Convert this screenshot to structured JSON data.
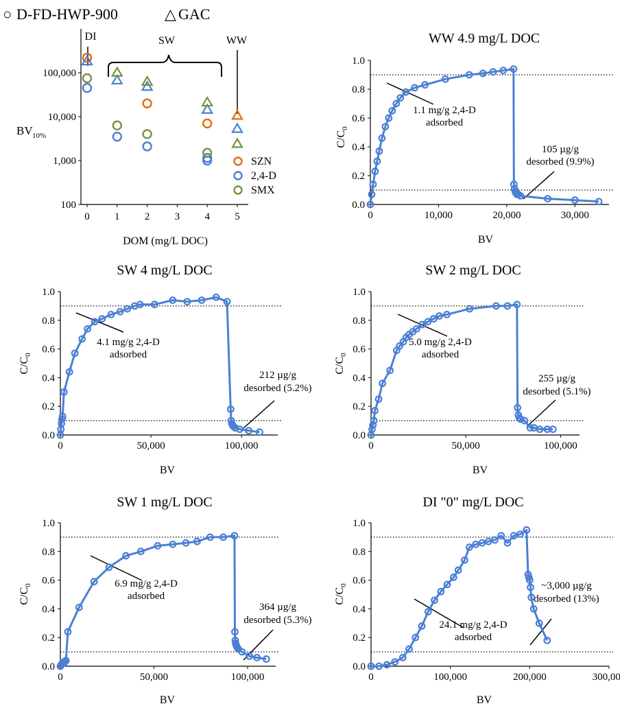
{
  "legend": {
    "circle_label": "D-FD-HWP-900",
    "triangle_label": "GAC",
    "symbols": {
      "circle": "○",
      "triangle": "△"
    }
  },
  "colors": {
    "SZN": "#e46c0a",
    "2,4-D": "#4a7fd4",
    "SMX": "#77933c",
    "curve": "#4a7fd4"
  },
  "chart_data": [
    {
      "type": "scatter",
      "id": "bv",
      "title": "",
      "xlabel": "DOM (mg/L  DOC)",
      "ylabel": "BV",
      "ylabel_sub": "10%",
      "yscale": "log",
      "xlim": [
        0,
        5
      ],
      "ylim": [
        100,
        1000000
      ],
      "xticks": [
        "0",
        "1",
        "2",
        "3",
        "4",
        "5"
      ],
      "yticks": [
        "100",
        "1,000",
        "10,000",
        "100,000"
      ],
      "yticks_values": [
        100,
        1000,
        10000,
        100000
      ],
      "grid": false,
      "region_labels": [
        {
          "text": "DI",
          "x": 0.2
        },
        {
          "text": "SW",
          "x": 2.7
        },
        {
          "text": "WW",
          "x": 5.0
        }
      ],
      "legend_entries": [
        "SZN",
        "2,4-D",
        "SMX"
      ],
      "series": [
        {
          "name": "SZN",
          "marker": "circle",
          "x": [
            0,
            2,
            4
          ],
          "y": [
            220000,
            20000,
            7000
          ]
        },
        {
          "name": "2,4-D",
          "marker": "circle",
          "x": [
            0,
            1,
            2,
            4,
            4
          ],
          "y": [
            45000,
            3500,
            2100,
            1000,
            1150
          ]
        },
        {
          "name": "SMX",
          "marker": "circle",
          "x": [
            0,
            1,
            2,
            4
          ],
          "y": [
            75000,
            6300,
            4000,
            1500
          ]
        },
        {
          "name": "SZN",
          "marker": "triangle",
          "x": [
            5
          ],
          "y": [
            11000
          ]
        },
        {
          "name": "2,4-D",
          "marker": "triangle",
          "x": [
            0,
            1,
            2,
            4,
            5
          ],
          "y": [
            190000,
            70000,
            50000,
            15000,
            5500
          ]
        },
        {
          "name": "SMX",
          "marker": "triangle",
          "x": [
            1,
            2,
            4,
            5
          ],
          "y": [
            105000,
            65000,
            22000,
            2500
          ]
        }
      ]
    },
    {
      "type": "line",
      "id": "ww",
      "title": "WW 4.9 mg/L  DOC",
      "xlabel": "BV",
      "ylabel": "C/C",
      "ylabel_sub": "0",
      "xlim": [
        0,
        35000
      ],
      "ylim": [
        0,
        1.0
      ],
      "xticks": [
        "0",
        "10,000",
        "20,000",
        "30,000"
      ],
      "xticks_values": [
        0,
        10000,
        20000,
        30000
      ],
      "yticks": [
        "0.0",
        "0.2",
        "0.4",
        "0.6",
        "0.8",
        "1.0"
      ],
      "reference_lines": [
        0.1,
        0.9
      ],
      "annotations": [
        {
          "lines": [
            "1.1 mg/g 2,4-D",
            "adsorbed"
          ]
        },
        {
          "lines": [
            "105 µg/g",
            "desorbed (9.9%)"
          ]
        }
      ],
      "series": [
        {
          "x": [
            0,
            200,
            400,
            700,
            1000,
            1300,
            1700,
            2200,
            2700,
            3200,
            3800,
            4400,
            5200,
            6500,
            8000,
            11000,
            14500,
            16500,
            18000,
            19500,
            21000,
            21050,
            21150,
            21250,
            21350,
            21500,
            21700,
            22000,
            26000,
            30000,
            33500
          ],
          "y": [
            0.0,
            0.07,
            0.14,
            0.23,
            0.3,
            0.37,
            0.46,
            0.54,
            0.6,
            0.65,
            0.7,
            0.74,
            0.78,
            0.81,
            0.83,
            0.87,
            0.9,
            0.91,
            0.92,
            0.93,
            0.94,
            0.14,
            0.11,
            0.09,
            0.08,
            0.07,
            0.07,
            0.06,
            0.04,
            0.03,
            0.02
          ]
        }
      ]
    },
    {
      "type": "line",
      "id": "sw4",
      "title": "SW 4 mg/L  DOC",
      "xlabel": "BV",
      "ylabel": "C/C",
      "ylabel_sub": "0",
      "xlim": [
        0,
        120000
      ],
      "ylim": [
        0,
        1.0
      ],
      "xticks": [
        "0",
        "50,000",
        "100,000"
      ],
      "xticks_values": [
        0,
        50000,
        100000
      ],
      "yticks": [
        "0.0",
        "0.2",
        "0.4",
        "0.6",
        "0.8",
        "1.0"
      ],
      "reference_lines": [
        0.1,
        0.9
      ],
      "annotations": [
        {
          "lines": [
            "4.1 mg/g 2,4-D",
            "adsorbed"
          ]
        },
        {
          "lines": [
            "212 µg/g",
            "desorbed (5.2%)"
          ]
        }
      ],
      "series": [
        {
          "x": [
            0,
            300,
            600,
            900,
            1200,
            2000,
            5000,
            8000,
            12000,
            15000,
            19000,
            23000,
            28000,
            33000,
            37000,
            41000,
            44000,
            52000,
            62000,
            70000,
            78000,
            86000,
            92000,
            94000,
            94300,
            94600,
            95000,
            95500,
            96500,
            99000,
            104000,
            110000
          ],
          "y": [
            0.0,
            0.04,
            0.08,
            0.11,
            0.13,
            0.3,
            0.44,
            0.57,
            0.67,
            0.74,
            0.79,
            0.81,
            0.84,
            0.86,
            0.88,
            0.9,
            0.91,
            0.91,
            0.94,
            0.93,
            0.94,
            0.96,
            0.93,
            0.18,
            0.1,
            0.08,
            0.07,
            0.06,
            0.05,
            0.04,
            0.03,
            0.02
          ]
        }
      ]
    },
    {
      "type": "line",
      "id": "sw2",
      "title": "SW 2 mg/L  DOC",
      "xlabel": "BV",
      "ylabel": "C/C",
      "ylabel_sub": "0",
      "xlim": [
        0,
        110000
      ],
      "ylim": [
        0,
        1.0
      ],
      "xticks": [
        "0",
        "50,000",
        "100,000"
      ],
      "xticks_values": [
        0,
        50000,
        100000
      ],
      "yticks": [
        "0.0",
        "0.2",
        "0.4",
        "0.6",
        "0.8",
        "1.0"
      ],
      "reference_lines": [
        0.1,
        0.9
      ],
      "annotations": [
        {
          "lines": [
            "5.0 mg/g 2,4-D",
            "adsorbed"
          ]
        },
        {
          "lines": [
            "255 µg/g",
            "desorbed (5.1%)"
          ]
        }
      ],
      "series": [
        {
          "x": [
            0,
            500,
            1000,
            1500,
            2000,
            4000,
            6000,
            10000,
            13500,
            15000,
            17000,
            18500,
            20000,
            22000,
            24000,
            27000,
            30000,
            33000,
            36000,
            40000,
            52000,
            66000,
            72000,
            77000,
            77300,
            77700,
            78200,
            79000,
            81000,
            84000,
            86000,
            89000,
            93000,
            96000
          ],
          "y": [
            0.0,
            0.04,
            0.07,
            0.1,
            0.17,
            0.25,
            0.36,
            0.45,
            0.59,
            0.62,
            0.65,
            0.68,
            0.7,
            0.72,
            0.74,
            0.77,
            0.79,
            0.81,
            0.83,
            0.84,
            0.88,
            0.9,
            0.9,
            0.91,
            0.19,
            0.14,
            0.12,
            0.11,
            0.1,
            0.05,
            0.05,
            0.04,
            0.04,
            0.04
          ]
        }
      ]
    },
    {
      "type": "line",
      "id": "sw1",
      "title": "SW 1 mg/L  DOC",
      "xlabel": "BV",
      "ylabel": "C/C",
      "ylabel_sub": "0",
      "xlim": [
        0,
        115000
      ],
      "ylim": [
        0,
        1.0
      ],
      "xticks": [
        "0",
        "50,000",
        "100,000"
      ],
      "xticks_values": [
        0,
        50000,
        100000
      ],
      "yticks": [
        "0.0",
        "0.2",
        "0.4",
        "0.6",
        "0.8",
        "1.0"
      ],
      "reference_lines": [
        0.1,
        0.9
      ],
      "annotations": [
        {
          "lines": [
            "6.9 mg/g 2,4-D",
            "adsorbed"
          ]
        },
        {
          "lines": [
            "364 µg/g",
            "desorbed (5.3%)"
          ]
        }
      ],
      "series": [
        {
          "x": [
            0,
            500,
            1000,
            1500,
            2000,
            2500,
            3000,
            4000,
            10000,
            18000,
            26000,
            35000,
            43000,
            52000,
            60000,
            67000,
            73000,
            80000,
            87000,
            93000,
            93200,
            93400,
            93600,
            93800,
            94100,
            94500,
            95000,
            97000,
            101000,
            105000,
            110000
          ],
          "y": [
            0.0,
            0.01,
            0.02,
            0.02,
            0.03,
            0.03,
            0.04,
            0.24,
            0.41,
            0.59,
            0.69,
            0.77,
            0.8,
            0.84,
            0.85,
            0.86,
            0.87,
            0.9,
            0.9,
            0.91,
            0.24,
            0.18,
            0.16,
            0.15,
            0.14,
            0.13,
            0.12,
            0.1,
            0.07,
            0.06,
            0.05
          ]
        }
      ]
    },
    {
      "type": "line",
      "id": "di",
      "title": "DI \"0\" mg/L  DOC",
      "xlabel": "BV",
      "ylabel": "C/C",
      "ylabel_sub": "0",
      "xlim": [
        0,
        300000
      ],
      "ylim": [
        0,
        1.0
      ],
      "xticks": [
        "0",
        "100,000",
        "200,000",
        "300,000"
      ],
      "xticks_values": [
        0,
        100000,
        200000,
        300000
      ],
      "yticks": [
        "0.0",
        "0.2",
        "0.4",
        "0.6",
        "0.8",
        "1.0"
      ],
      "reference_lines": [
        0.1,
        0.9
      ],
      "annotations": [
        {
          "lines": [
            "24.1 mg/g 2,4-D",
            "adsorbed"
          ]
        },
        {
          "lines": [
            "~3,000 µg/g",
            "desorbed (13%)"
          ]
        }
      ],
      "series": [
        {
          "x": [
            0,
            10000,
            20000,
            30000,
            40000,
            48000,
            56000,
            64000,
            72000,
            80000,
            88000,
            96000,
            104000,
            110000,
            118000,
            124000,
            132000,
            140000,
            148000,
            156000,
            164000,
            172000,
            180000,
            188000,
            196000,
            198000,
            199000,
            200000,
            201000,
            202000,
            205000,
            212000,
            222000
          ],
          "y": [
            0.0,
            0.0,
            0.01,
            0.03,
            0.06,
            0.12,
            0.2,
            0.28,
            0.38,
            0.46,
            0.52,
            0.57,
            0.62,
            0.67,
            0.74,
            0.83,
            0.85,
            0.86,
            0.87,
            0.88,
            0.91,
            0.86,
            0.91,
            0.92,
            0.95,
            0.64,
            0.62,
            0.6,
            0.55,
            0.48,
            0.4,
            0.3,
            0.18
          ]
        }
      ]
    }
  ]
}
